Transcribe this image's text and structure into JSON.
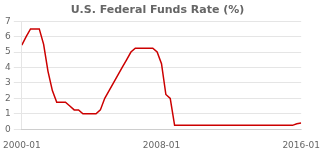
{
  "chart_data": {
    "type": "line",
    "title": "U.S. Federal Funds Rate (%)",
    "color": "#cc0000",
    "x": [
      2000.0,
      2000.25,
      2000.5,
      2000.75,
      2001.0,
      2001.25,
      2001.5,
      2001.75,
      2002.0,
      2002.25,
      2002.5,
      2002.75,
      2003.0,
      2003.25,
      2003.5,
      2003.75,
      2004.0,
      2004.25,
      2004.5,
      2004.75,
      2005.0,
      2005.25,
      2005.5,
      2005.75,
      2006.0,
      2006.25,
      2006.5,
      2006.75,
      2007.0,
      2007.25,
      2007.5,
      2007.75,
      2008.0,
      2008.25,
      2008.5,
      2008.75,
      2009.0,
      2009.25,
      2009.5,
      2009.75,
      2010.0,
      2010.25,
      2010.5,
      2010.75,
      2011.0,
      2011.25,
      2011.5,
      2011.75,
      2012.0,
      2012.25,
      2012.5,
      2012.75,
      2013.0,
      2013.25,
      2013.5,
      2013.75,
      2014.0,
      2014.25,
      2014.5,
      2014.75,
      2015.0,
      2015.25,
      2015.5,
      2015.75,
      2016.0
    ],
    "values": [
      5.45,
      6.0,
      6.5,
      6.5,
      6.5,
      5.5,
      3.75,
      2.5,
      1.75,
      1.75,
      1.75,
      1.5,
      1.25,
      1.25,
      1.0,
      1.0,
      1.0,
      1.0,
      1.25,
      2.0,
      2.5,
      3.0,
      3.5,
      4.0,
      4.5,
      5.0,
      5.25,
      5.25,
      5.25,
      5.25,
      5.25,
      5.0,
      4.25,
      2.25,
      2.0,
      0.25,
      0.25,
      0.25,
      0.25,
      0.25,
      0.25,
      0.25,
      0.25,
      0.25,
      0.25,
      0.25,
      0.25,
      0.25,
      0.25,
      0.25,
      0.25,
      0.25,
      0.25,
      0.25,
      0.25,
      0.25,
      0.25,
      0.25,
      0.25,
      0.25,
      0.25,
      0.25,
      0.25,
      0.35,
      0.4
    ],
    "xlim": [
      2000.0,
      2016.0
    ],
    "xticks": [
      {
        "value": 2000.0,
        "label": "2000-01"
      },
      {
        "value": 2008.0,
        "label": "2008-01"
      },
      {
        "value": 2016.0,
        "label": "2016-01"
      }
    ],
    "ylim": [
      0,
      7
    ],
    "yticks": [
      0,
      1,
      2,
      3,
      4,
      5,
      6,
      7
    ],
    "grid": "y"
  }
}
